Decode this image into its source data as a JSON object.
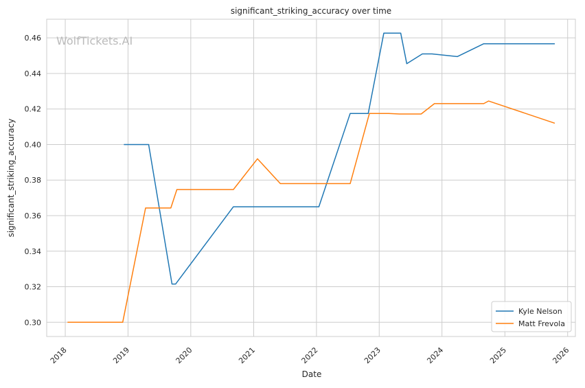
{
  "watermark": "WolfTickets.AI",
  "chart_data": {
    "type": "line",
    "title": "significant_striking_accuracy over time",
    "xlabel": "Date",
    "ylabel": "significant_striking_accuracy",
    "x_ticks": [
      "2018",
      "2019",
      "2020",
      "2021",
      "2022",
      "2023",
      "2024",
      "2025",
      "2026"
    ],
    "y_ticks": [
      "0.30",
      "0.32",
      "0.34",
      "0.36",
      "0.38",
      "0.40",
      "0.42",
      "0.44",
      "0.46"
    ],
    "xlim": [
      "2017-09-15",
      "2026-02-15"
    ],
    "ylim": [
      0.292,
      0.4705
    ],
    "grid": true,
    "legend_position": "lower-right",
    "series": [
      {
        "name": "Kyle Nelson",
        "color": "#1f77b4",
        "points": [
          [
            "2018-12-08",
            0.4
          ],
          [
            "2019-05-01",
            0.4
          ],
          [
            "2019-09-14",
            0.3215
          ],
          [
            "2019-10-05",
            0.3215
          ],
          [
            "2020-09-05",
            0.365
          ],
          [
            "2022-01-15",
            0.365
          ],
          [
            "2022-07-16",
            0.4175
          ],
          [
            "2022-10-29",
            0.4175
          ],
          [
            "2023-01-28",
            0.4627
          ],
          [
            "2023-05-06",
            0.4627
          ],
          [
            "2023-06-10",
            0.4455
          ],
          [
            "2023-09-09",
            0.451
          ],
          [
            "2023-11-04",
            0.451
          ],
          [
            "2024-03-30",
            0.4495
          ],
          [
            "2024-08-31",
            0.4567
          ],
          [
            "2025-10-18",
            0.4567
          ]
        ]
      },
      {
        "name": "Matt Frevola",
        "color": "#ff7f0e",
        "points": [
          [
            "2018-01-14",
            0.3
          ],
          [
            "2018-12-01",
            0.3
          ],
          [
            "2019-04-13",
            0.3643
          ],
          [
            "2019-09-07",
            0.3643
          ],
          [
            "2019-10-12",
            0.3747
          ],
          [
            "2020-09-05",
            0.3747
          ],
          [
            "2021-01-23",
            0.392
          ],
          [
            "2021-06-05",
            0.378
          ],
          [
            "2022-07-16",
            0.378
          ],
          [
            "2022-11-05",
            0.4175
          ],
          [
            "2023-02-25",
            0.4175
          ],
          [
            "2023-04-29",
            0.4172
          ],
          [
            "2023-09-02",
            0.4172
          ],
          [
            "2023-11-18",
            0.423
          ],
          [
            "2024-08-31",
            0.423
          ],
          [
            "2024-09-28",
            0.4245
          ],
          [
            "2025-10-18",
            0.412
          ]
        ]
      }
    ]
  }
}
